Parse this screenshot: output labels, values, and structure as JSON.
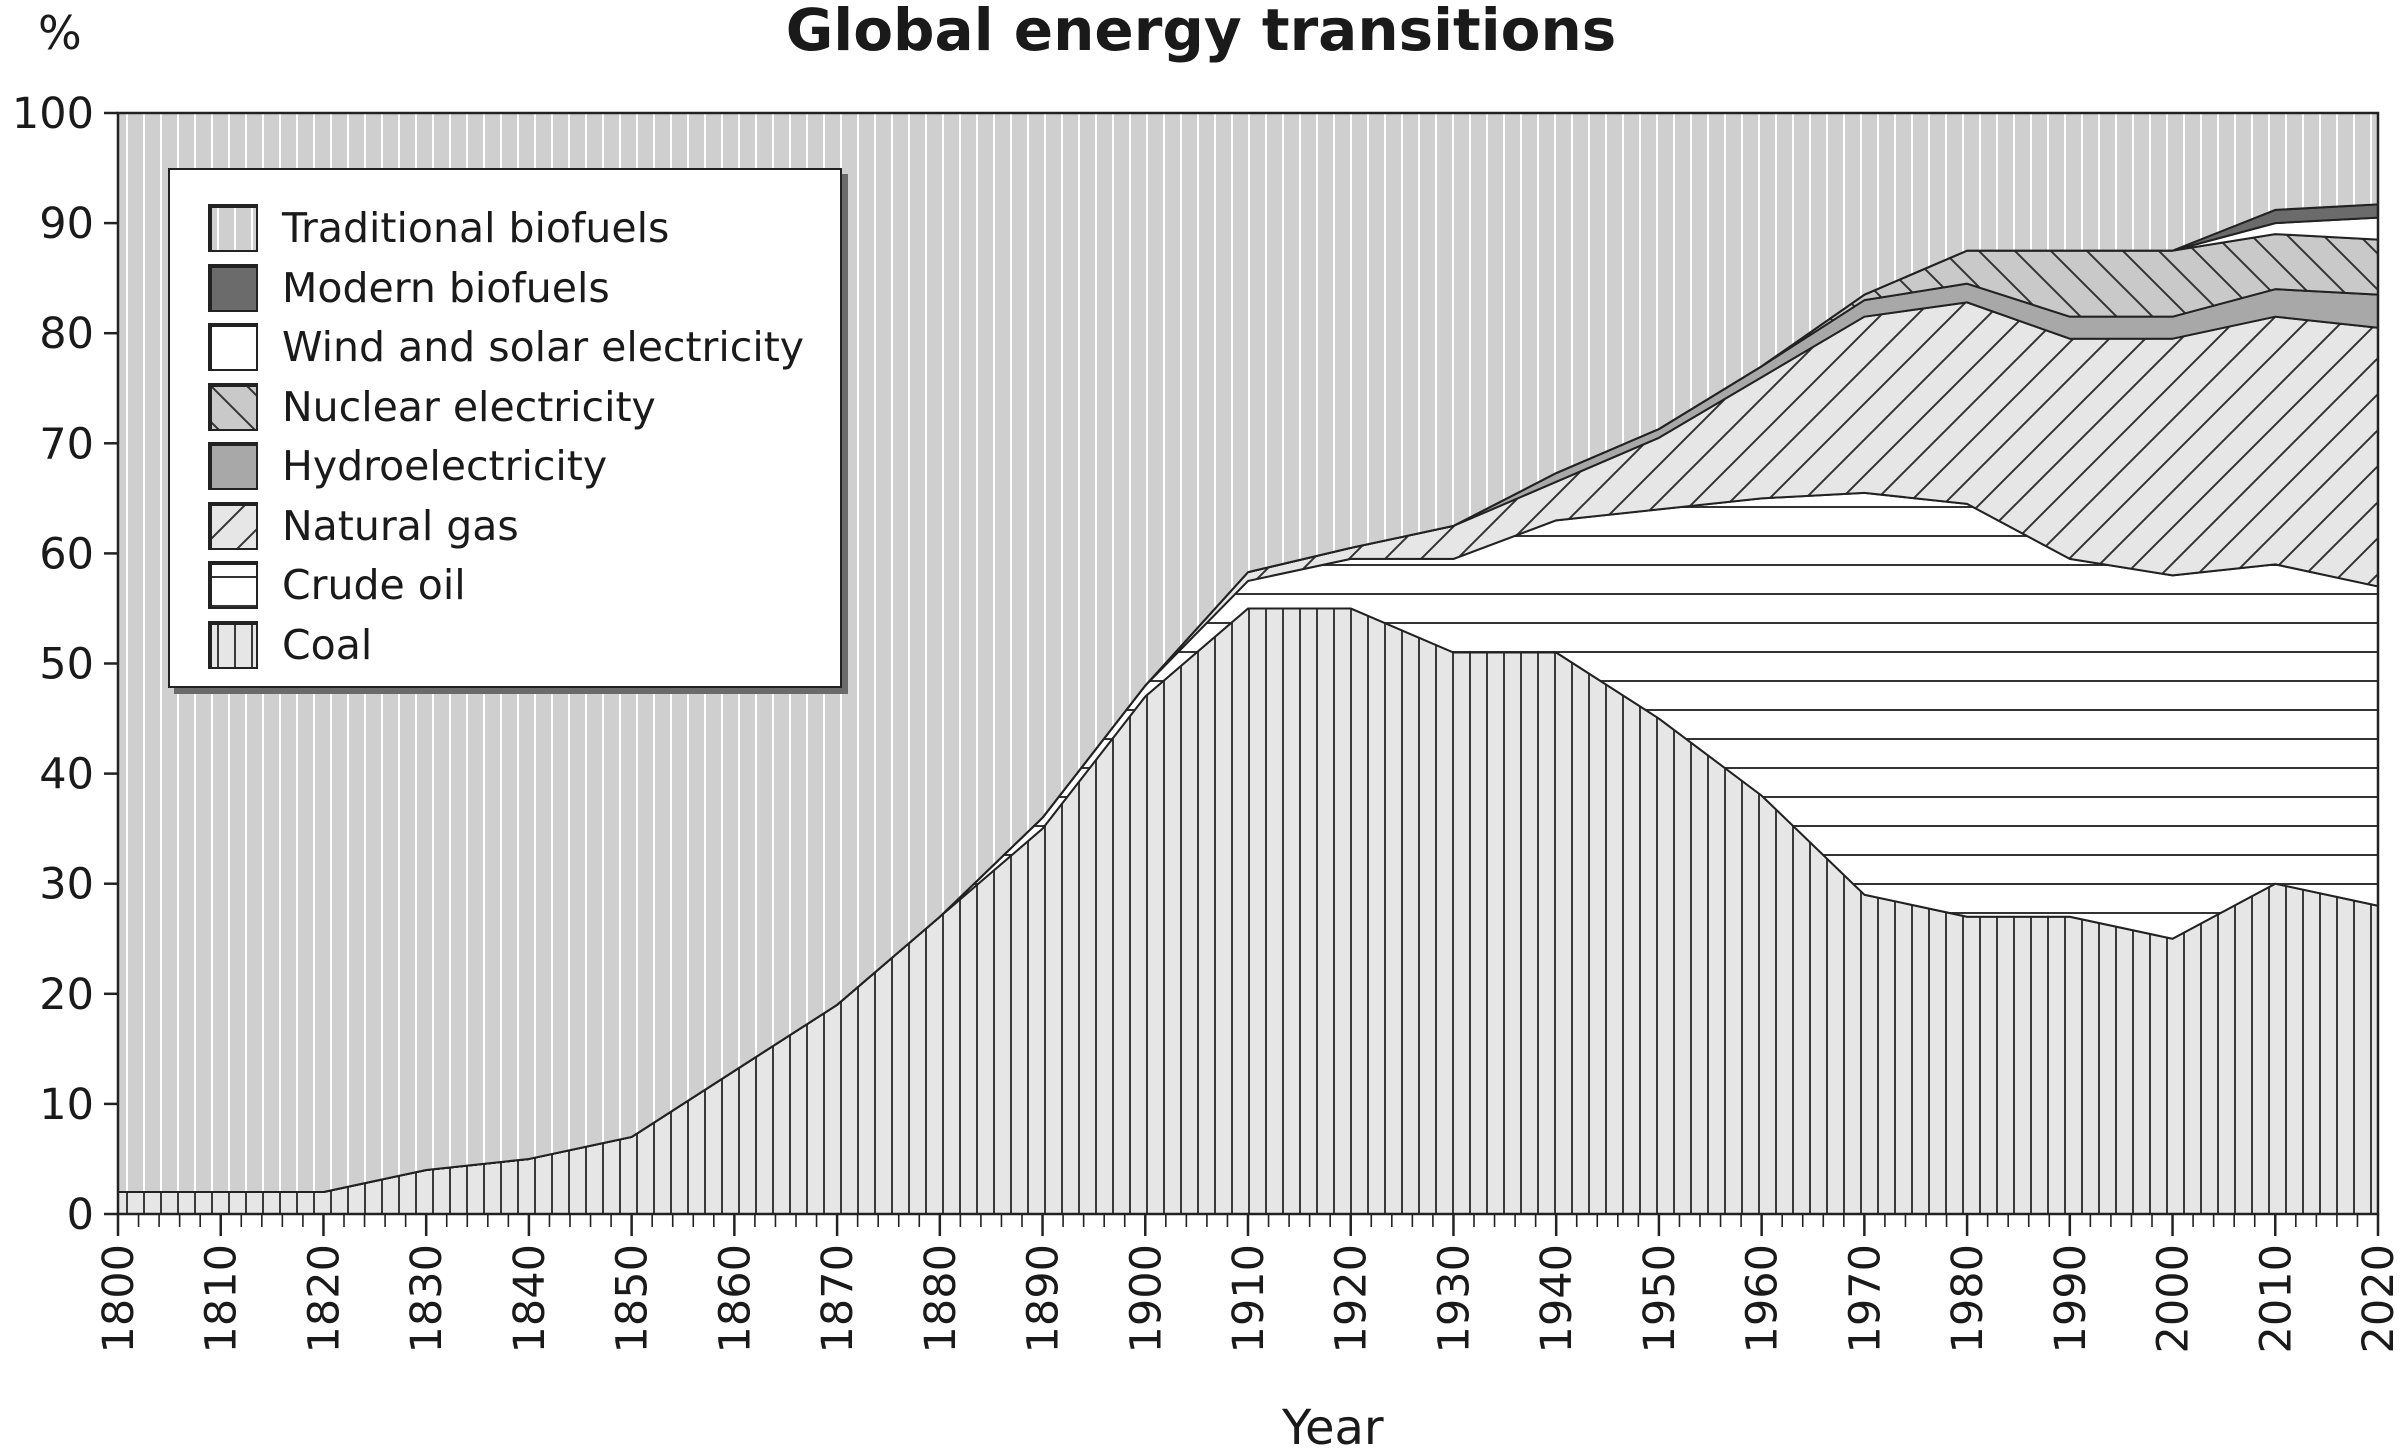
{
  "chart_data": {
    "type": "area",
    "stacked": true,
    "title": "Global energy transitions",
    "y_unit": "%",
    "xlabel": "Year",
    "ylabel": "",
    "xlim": [
      1800,
      2020
    ],
    "ylim": [
      0,
      100
    ],
    "x_ticks": [
      1800,
      1810,
      1820,
      1830,
      1840,
      1850,
      1860,
      1870,
      1880,
      1890,
      1900,
      1910,
      1920,
      1930,
      1940,
      1950,
      1960,
      1970,
      1980,
      1990,
      2000,
      2010,
      2020
    ],
    "y_ticks": [
      0,
      10,
      20,
      30,
      40,
      50,
      60,
      70,
      80,
      90,
      100
    ],
    "grid": false,
    "legend_position": "top-left",
    "x": [
      1800,
      1810,
      1820,
      1830,
      1840,
      1850,
      1860,
      1870,
      1880,
      1890,
      1900,
      1910,
      1920,
      1930,
      1940,
      1950,
      1960,
      1970,
      1980,
      1990,
      2000,
      2010,
      2020
    ],
    "series": [
      {
        "name": "Coal",
        "pattern": "vertical-lines",
        "color": "#e6e6e6",
        "values": [
          2,
          2,
          2,
          4,
          5,
          7,
          13,
          19,
          27,
          35,
          47,
          55,
          55,
          51,
          51,
          45,
          38,
          29,
          27,
          27,
          25,
          30,
          28
        ]
      },
      {
        "name": "Crude oil",
        "pattern": "horizontal-lines",
        "color": "#ffffff",
        "values": [
          0,
          0,
          0,
          0,
          0,
          0,
          0,
          0,
          0,
          1,
          1,
          2.5,
          4.5,
          8.5,
          12,
          19,
          27,
          36.5,
          37.5,
          32.5,
          33,
          29,
          29
        ]
      },
      {
        "name": "Natural gas",
        "pattern": "forward-diagonal",
        "color": "#e6e6e6",
        "values": [
          0,
          0,
          0,
          0,
          0,
          0,
          0,
          0,
          0,
          0,
          0,
          0.8,
          1,
          3,
          3.5,
          6.5,
          11,
          16,
          18.3,
          20,
          21.5,
          22.5,
          23.5
        ]
      },
      {
        "name": "Hydroelectricity",
        "pattern": "solid",
        "color": "#a8a8a8",
        "values": [
          0,
          0,
          0,
          0,
          0,
          0,
          0,
          0,
          0,
          0,
          0,
          0,
          0,
          0,
          0.8,
          0.8,
          1,
          1.5,
          1.7,
          2,
          2,
          2.5,
          3
        ]
      },
      {
        "name": "Nuclear electricity",
        "pattern": "back-diagonal",
        "color": "#c9c9c9",
        "values": [
          0,
          0,
          0,
          0,
          0,
          0,
          0,
          0,
          0,
          0,
          0,
          0,
          0,
          0,
          0,
          0,
          0,
          0.5,
          3,
          6,
          6,
          5,
          5
        ]
      },
      {
        "name": "Wind and solar electricity",
        "pattern": "solid",
        "color": "#ffffff",
        "values": [
          0,
          0,
          0,
          0,
          0,
          0,
          0,
          0,
          0,
          0,
          0,
          0,
          0,
          0,
          0,
          0,
          0,
          0,
          0,
          0,
          0,
          1,
          2
        ]
      },
      {
        "name": "Modern biofuels",
        "pattern": "solid",
        "color": "#6b6b6b",
        "values": [
          0,
          0,
          0,
          0,
          0,
          0,
          0,
          0,
          0,
          0,
          0,
          0,
          0,
          0,
          0,
          0,
          0,
          0,
          0,
          0,
          0,
          1.2,
          1.2
        ]
      },
      {
        "name": "Traditional biofuels",
        "pattern": "vertical-lines",
        "color": "#cfcfcf",
        "values": [
          98,
          98,
          98,
          96,
          95,
          93,
          87,
          81,
          73,
          64,
          52,
          41.7,
          39.5,
          37.5,
          32.7,
          28.7,
          23,
          16.5,
          12.5,
          12.5,
          12.5,
          8.8,
          8.3
        ]
      }
    ],
    "legend": [
      "Traditional biofuels",
      "Modern biofuels",
      "Wind and solar electricity",
      "Nuclear electricity",
      "Hydroelectricity",
      "Natural gas",
      "Crude oil",
      "Coal"
    ]
  }
}
